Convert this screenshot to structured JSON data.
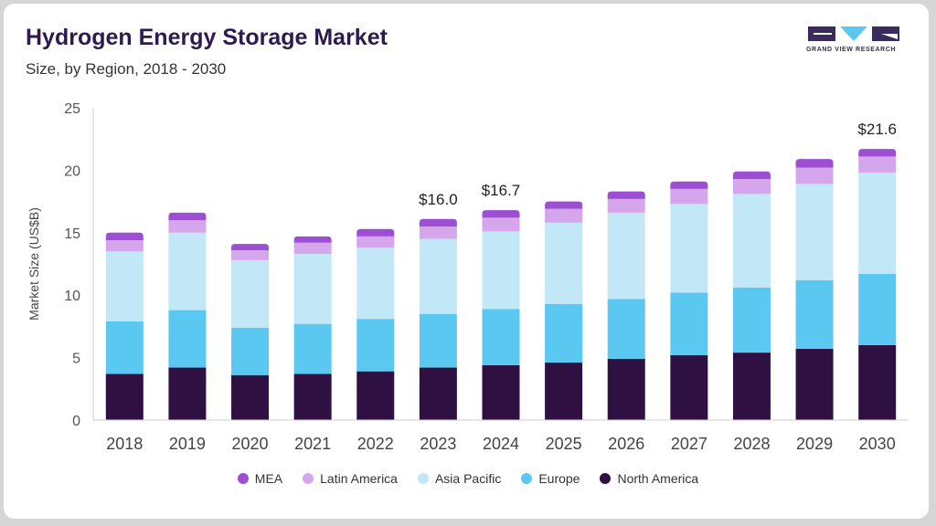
{
  "header": {
    "title": "Hydrogen Energy Storage Market",
    "subtitle": "Size, by Region, 2018 - 2030",
    "logo_text": "GRAND VIEW RESEARCH"
  },
  "colors": {
    "MEA": "#9d4fd3",
    "Latin America": "#d5a6ec",
    "Asia Pacific": "#c2e8f8",
    "Europe": "#5ac8f0",
    "North America": "#2e1142"
  },
  "chart_data": {
    "type": "bar",
    "stacked": true,
    "title": "Hydrogen Energy Storage Market",
    "ylabel": "Market Size (US$B)",
    "xlabel": "",
    "ylim": [
      0,
      25
    ],
    "yticks": [
      0,
      5,
      10,
      15,
      20,
      25
    ],
    "categories": [
      "2018",
      "2019",
      "2020",
      "2021",
      "2022",
      "2023",
      "2024",
      "2025",
      "2026",
      "2027",
      "2028",
      "2029",
      "2030"
    ],
    "series": [
      {
        "name": "North America",
        "values": [
          3.7,
          4.2,
          3.6,
          3.7,
          3.9,
          4.2,
          4.4,
          4.6,
          4.9,
          5.2,
          5.4,
          5.7,
          6.0
        ]
      },
      {
        "name": "Europe",
        "values": [
          4.2,
          4.6,
          3.8,
          4.0,
          4.2,
          4.3,
          4.5,
          4.7,
          4.8,
          5.0,
          5.2,
          5.5,
          5.7
        ]
      },
      {
        "name": "Asia Pacific",
        "values": [
          5.6,
          6.2,
          5.4,
          5.6,
          5.7,
          6.0,
          6.2,
          6.5,
          6.9,
          7.1,
          7.5,
          7.7,
          8.1
        ]
      },
      {
        "name": "Latin America",
        "values": [
          0.9,
          1.0,
          0.8,
          0.9,
          0.9,
          1.0,
          1.1,
          1.1,
          1.1,
          1.2,
          1.2,
          1.3,
          1.3
        ]
      },
      {
        "name": "MEA",
        "values": [
          0.6,
          0.6,
          0.5,
          0.5,
          0.6,
          0.6,
          0.6,
          0.6,
          0.6,
          0.6,
          0.6,
          0.7,
          0.6
        ]
      }
    ],
    "annotations": [
      {
        "category": "2023",
        "label": "$16.0"
      },
      {
        "category": "2024",
        "label": "$16.7"
      },
      {
        "category": "2030",
        "label": "$21.6"
      }
    ],
    "legend": [
      "MEA",
      "Latin America",
      "Asia Pacific",
      "Europe",
      "North America"
    ],
    "legend_position": "bottom",
    "grid": false
  }
}
